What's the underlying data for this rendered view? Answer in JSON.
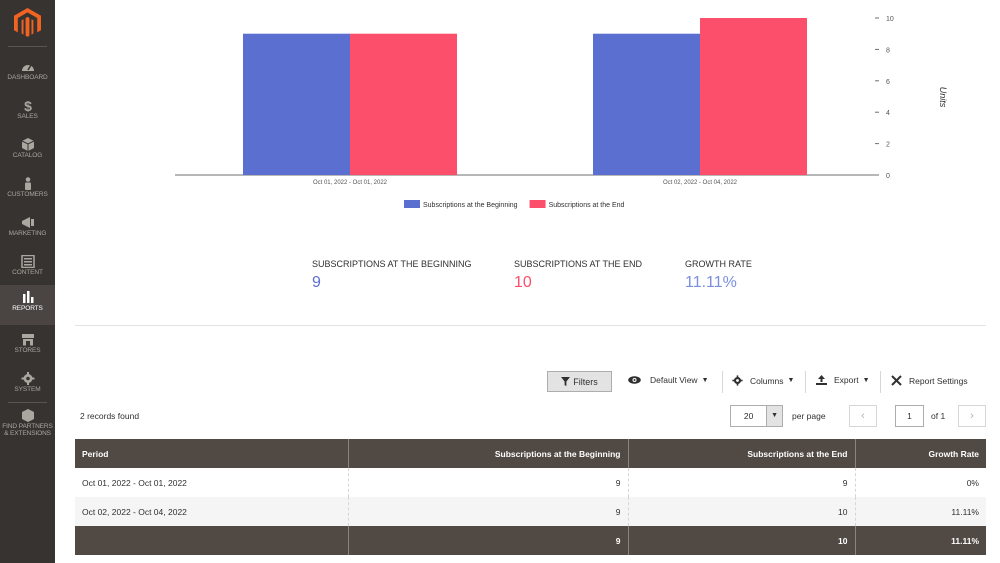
{
  "sidebar": {
    "items": [
      {
        "label": "DASHBOARD",
        "icon": "speedometer-icon"
      },
      {
        "label": "SALES",
        "icon": "dollar-icon"
      },
      {
        "label": "CATALOG",
        "icon": "cube-icon"
      },
      {
        "label": "CUSTOMERS",
        "icon": "person-icon"
      },
      {
        "label": "MARKETING",
        "icon": "megaphone-icon"
      },
      {
        "label": "CONTENT",
        "icon": "layout-icon"
      },
      {
        "label": "REPORTS",
        "icon": "bar-chart-icon",
        "active": true
      },
      {
        "label": "STORES",
        "icon": "storefront-icon"
      },
      {
        "label": "SYSTEM",
        "icon": "gear-icon"
      },
      {
        "label": "FIND PARTNERS",
        "label2": "& EXTENSIONS",
        "icon": "box-icon"
      }
    ]
  },
  "chart_data": {
    "type": "bar",
    "categories": [
      "Oct 01, 2022 - Oct 01, 2022",
      "Oct 02, 2022 - Oct 04, 2022"
    ],
    "series": [
      {
        "name": "Subscriptions at the Beginning",
        "values": [
          9,
          9
        ],
        "color": "#5b6fd1"
      },
      {
        "name": "Subscriptions at the End",
        "values": [
          9,
          10
        ],
        "color": "#fc4f6b"
      }
    ],
    "ylabel": "Units",
    "ylim": [
      0,
      10
    ],
    "yticks": [
      "0",
      "2",
      "4",
      "6",
      "8",
      "10"
    ],
    "y_axis_side": "right",
    "legend_position": "bottom"
  },
  "stats": {
    "beginning": {
      "title": "SUBSCRIPTIONS AT THE BEGINNING",
      "value": "9",
      "color": "#5b6fd1"
    },
    "end": {
      "title": "SUBSCRIPTIONS AT THE END",
      "value": "10",
      "color": "#fc4f6b"
    },
    "growth": {
      "title": "GROWTH RATE",
      "value": "11.11%",
      "color": "#7b8fe0"
    }
  },
  "toolbar": {
    "filters": "Filters",
    "default_view": "Default View",
    "columns": "Columns",
    "export": "Export",
    "report_settings": "Report Settings"
  },
  "grid": {
    "records_found": "2 records found",
    "per_page_value": "20",
    "per_page_label": "per page",
    "page": "1",
    "page_of": "of 1",
    "headers": [
      "Period",
      "Subscriptions at the Beginning",
      "Subscriptions at the End",
      "Growth Rate"
    ],
    "rows": [
      [
        "Oct 01, 2022 - Oct 01, 2022",
        "9",
        "9",
        "0%"
      ],
      [
        "Oct 02, 2022 - Oct 04, 2022",
        "9",
        "10",
        "11.11%"
      ]
    ],
    "totals": [
      "",
      "9",
      "10",
      "11.11%"
    ]
  }
}
